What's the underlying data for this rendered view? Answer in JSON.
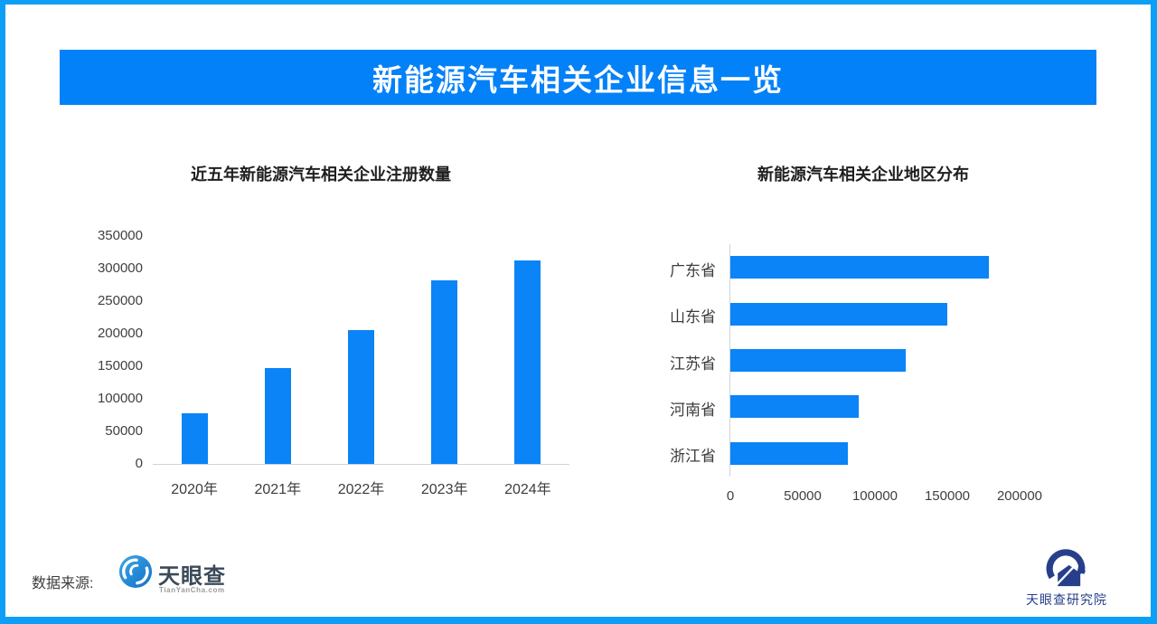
{
  "colors": {
    "border": "#0d9ff6",
    "banner_bg": "#0381f8",
    "bar_blue": "#0a84f6",
    "axis_line": "#d0d3d8",
    "logo_navy": "#273f8a"
  },
  "header": {
    "title": "新能源汽车相关企业信息一览"
  },
  "chart_data": [
    {
      "type": "bar",
      "title": "近五年新能源汽车相关企业注册数量",
      "categories": [
        "2020年",
        "2021年",
        "2022年",
        "2023年",
        "2024年"
      ],
      "values": [
        78000,
        147000,
        205000,
        282000,
        313000
      ],
      "xlabel": "",
      "ylabel": "",
      "ylim": [
        0,
        350000
      ],
      "ytick_step": 50000,
      "grid": false,
      "legend": "none",
      "bar_color": "#0a84f6"
    },
    {
      "type": "bar-horizontal",
      "title": "新能源汽车相关企业地区分布",
      "categories": [
        "广东省",
        "山东省",
        "江苏省",
        "河南省",
        "浙江省"
      ],
      "values": [
        179000,
        150000,
        121000,
        89000,
        81000
      ],
      "xlim": [
        0,
        250000
      ],
      "xticks": [
        0,
        50000,
        100000,
        150000,
        200000
      ],
      "grid": false,
      "legend": "none",
      "bar_color": "#0a84f6"
    }
  ],
  "footer": {
    "source_label": "数据来源:",
    "tianyancha": {
      "icon": "tianyancha-eye-icon",
      "name": "天眼查",
      "domain": "TianYanCha.com"
    },
    "research": {
      "icon": "research-institute-icon",
      "name": "天眼查研究院"
    }
  }
}
